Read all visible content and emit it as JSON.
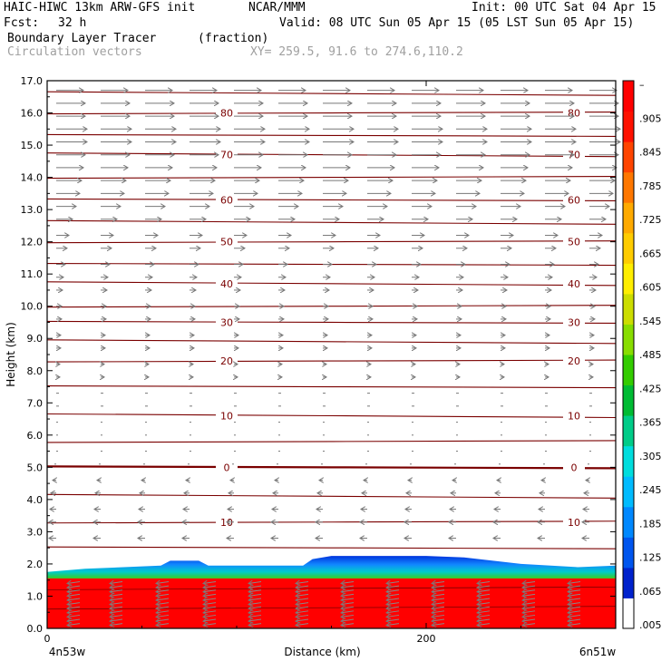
{
  "header": {
    "model": "HAIC-HIWC 13km ARW-GFS init",
    "org": "NCAR/MMM",
    "init": "Init: 00 UTC Sat 04 Apr 15",
    "fcst_label": "Fcst:",
    "fcst_value": "32 h",
    "valid": "Valid: 08 UTC Sun 05 Apr 15 (05 LST Sun 05 Apr 15)",
    "field": "Boundary Layer Tracer",
    "field_units": "(fraction)",
    "overlay": "Circulation vectors",
    "xy": "XY= 259.5, 91.6 to 274.6,110.2"
  },
  "chart_data": {
    "type": "heatmap",
    "title": "Boundary Layer Tracer",
    "ylabel": "Height (km)",
    "xlabel": "Distance (km)",
    "x_range": [
      0,
      300
    ],
    "ylim": [
      0,
      17
    ],
    "y_ticks": [
      0.0,
      1.0,
      2.0,
      3.0,
      4.0,
      5.0,
      6.0,
      7.0,
      8.0,
      9.0,
      10.0,
      11.0,
      12.0,
      13.0,
      14.0,
      15.0,
      16.0,
      17.0
    ],
    "x_ticks": [
      0,
      200
    ],
    "x_endpoint_labels": [
      "4n53w",
      "6n51w"
    ],
    "colorbar": {
      "labels": [
        ".005",
        ".065",
        ".125",
        ".185",
        ".245",
        ".305",
        ".365",
        ".425",
        ".485",
        ".545",
        ".605",
        ".665",
        ".725",
        ".785",
        ".845",
        ".905",
        "–"
      ],
      "colors": [
        "#ffffff",
        "#0022cc",
        "#0055ee",
        "#0088ff",
        "#00bbff",
        "#00dddd",
        "#00cc88",
        "#00bb33",
        "#33cc00",
        "#88dd00",
        "#ccdd00",
        "#ffee00",
        "#ffcc00",
        "#ffaa00",
        "#ff7700",
        "#ff4400",
        "#ff1100",
        "#ff0000"
      ]
    },
    "contours": {
      "label_values": [
        "80",
        "70",
        "60",
        "50",
        "40",
        "30",
        "20",
        "10",
        "0",
        "10"
      ],
      "label_heights": [
        16.0,
        14.7,
        13.3,
        12.0,
        10.7,
        9.5,
        8.3,
        6.6,
        5.0,
        3.3
      ],
      "line_heights": [
        16.6,
        16.0,
        15.3,
        14.7,
        14.0,
        13.3,
        12.6,
        12.0,
        11.3,
        10.7,
        10.0,
        9.5,
        8.9,
        8.3,
        7.5,
        6.6,
        5.8,
        5.0,
        4.1,
        3.3,
        2.5
      ]
    },
    "tracer_top": [
      [
        0,
        1.75
      ],
      [
        20,
        1.85
      ],
      [
        60,
        1.95
      ],
      [
        65,
        2.1
      ],
      [
        80,
        2.1
      ],
      [
        85,
        1.95
      ],
      [
        135,
        1.95
      ],
      [
        140,
        2.15
      ],
      [
        150,
        2.25
      ],
      [
        200,
        2.25
      ],
      [
        220,
        2.2
      ],
      [
        250,
        2.0
      ],
      [
        280,
        1.9
      ],
      [
        300,
        1.95
      ]
    ],
    "tracer_full_top": 1.55,
    "vectors": {
      "rows_km": [
        16.7,
        16.3,
        15.9,
        15.5,
        15.1,
        14.7,
        14.3,
        13.9,
        13.5,
        13.1,
        12.7,
        12.2,
        11.8,
        11.3,
        10.9,
        10.5,
        10.0,
        9.6,
        9.1,
        8.7,
        8.2,
        7.8,
        7.3,
        6.9,
        6.4,
        6.0,
        5.5,
        5.1,
        4.6,
        4.2,
        3.7,
        3.3,
        2.8
      ],
      "u_by_row": [
        30,
        32,
        32,
        34,
        34,
        32,
        30,
        28,
        26,
        22,
        18,
        14,
        12,
        10,
        8,
        7,
        6,
        6,
        5,
        5,
        4,
        4,
        3,
        3,
        2,
        2,
        1,
        -2,
        -4,
        -6,
        -7,
        -8,
        -8
      ]
    }
  }
}
